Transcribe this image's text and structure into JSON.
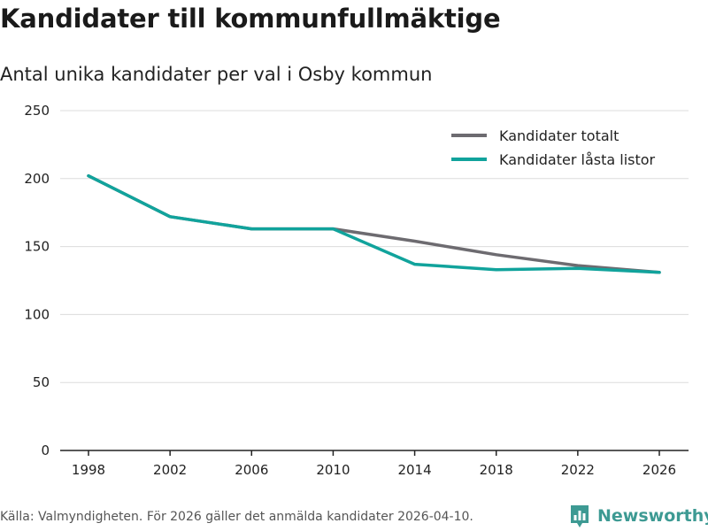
{
  "title": "Kandidater till kommunfullmäktige",
  "subtitle": "Antal unika kandidater per val i Osby kommun",
  "source": "Källa: Valmyndigheten. För 2026 gäller det anmälda kandidater 2026-04-10.",
  "brand": {
    "name": "Newsworthy",
    "icon": "bar-chart-icon"
  },
  "colors": {
    "series_total": "#6d6b70",
    "series_locked": "#11a39c",
    "grid": "#dcdcdc",
    "axis": "#222222",
    "brand": "#3d9a93"
  },
  "chart_data": {
    "type": "line",
    "title": "Kandidater till kommunfullmäktige",
    "subtitle": "Antal unika kandidater per val i Osby kommun",
    "xlabel": "",
    "ylabel": "",
    "x": [
      1998,
      2002,
      2006,
      2010,
      2014,
      2018,
      2022,
      2026
    ],
    "x_tick_labels": [
      "1998",
      "2002",
      "2006",
      "2010",
      "2014",
      "2018",
      "2022",
      "2026"
    ],
    "ylim": [
      0,
      250
    ],
    "y_ticks": [
      0,
      50,
      100,
      150,
      200,
      250
    ],
    "y_tick_labels": [
      "0",
      "50",
      "100",
      "150",
      "200",
      "250"
    ],
    "grid": true,
    "legend_position": "top-right",
    "series": [
      {
        "name": "Kandidater totalt",
        "color": "#6d6b70",
        "values": [
          202,
          172,
          163,
          163,
          154,
          144,
          136,
          131
        ]
      },
      {
        "name": "Kandidater låsta listor",
        "color": "#11a39c",
        "values": [
          202,
          172,
          163,
          163,
          137,
          133,
          134,
          131
        ]
      }
    ]
  }
}
